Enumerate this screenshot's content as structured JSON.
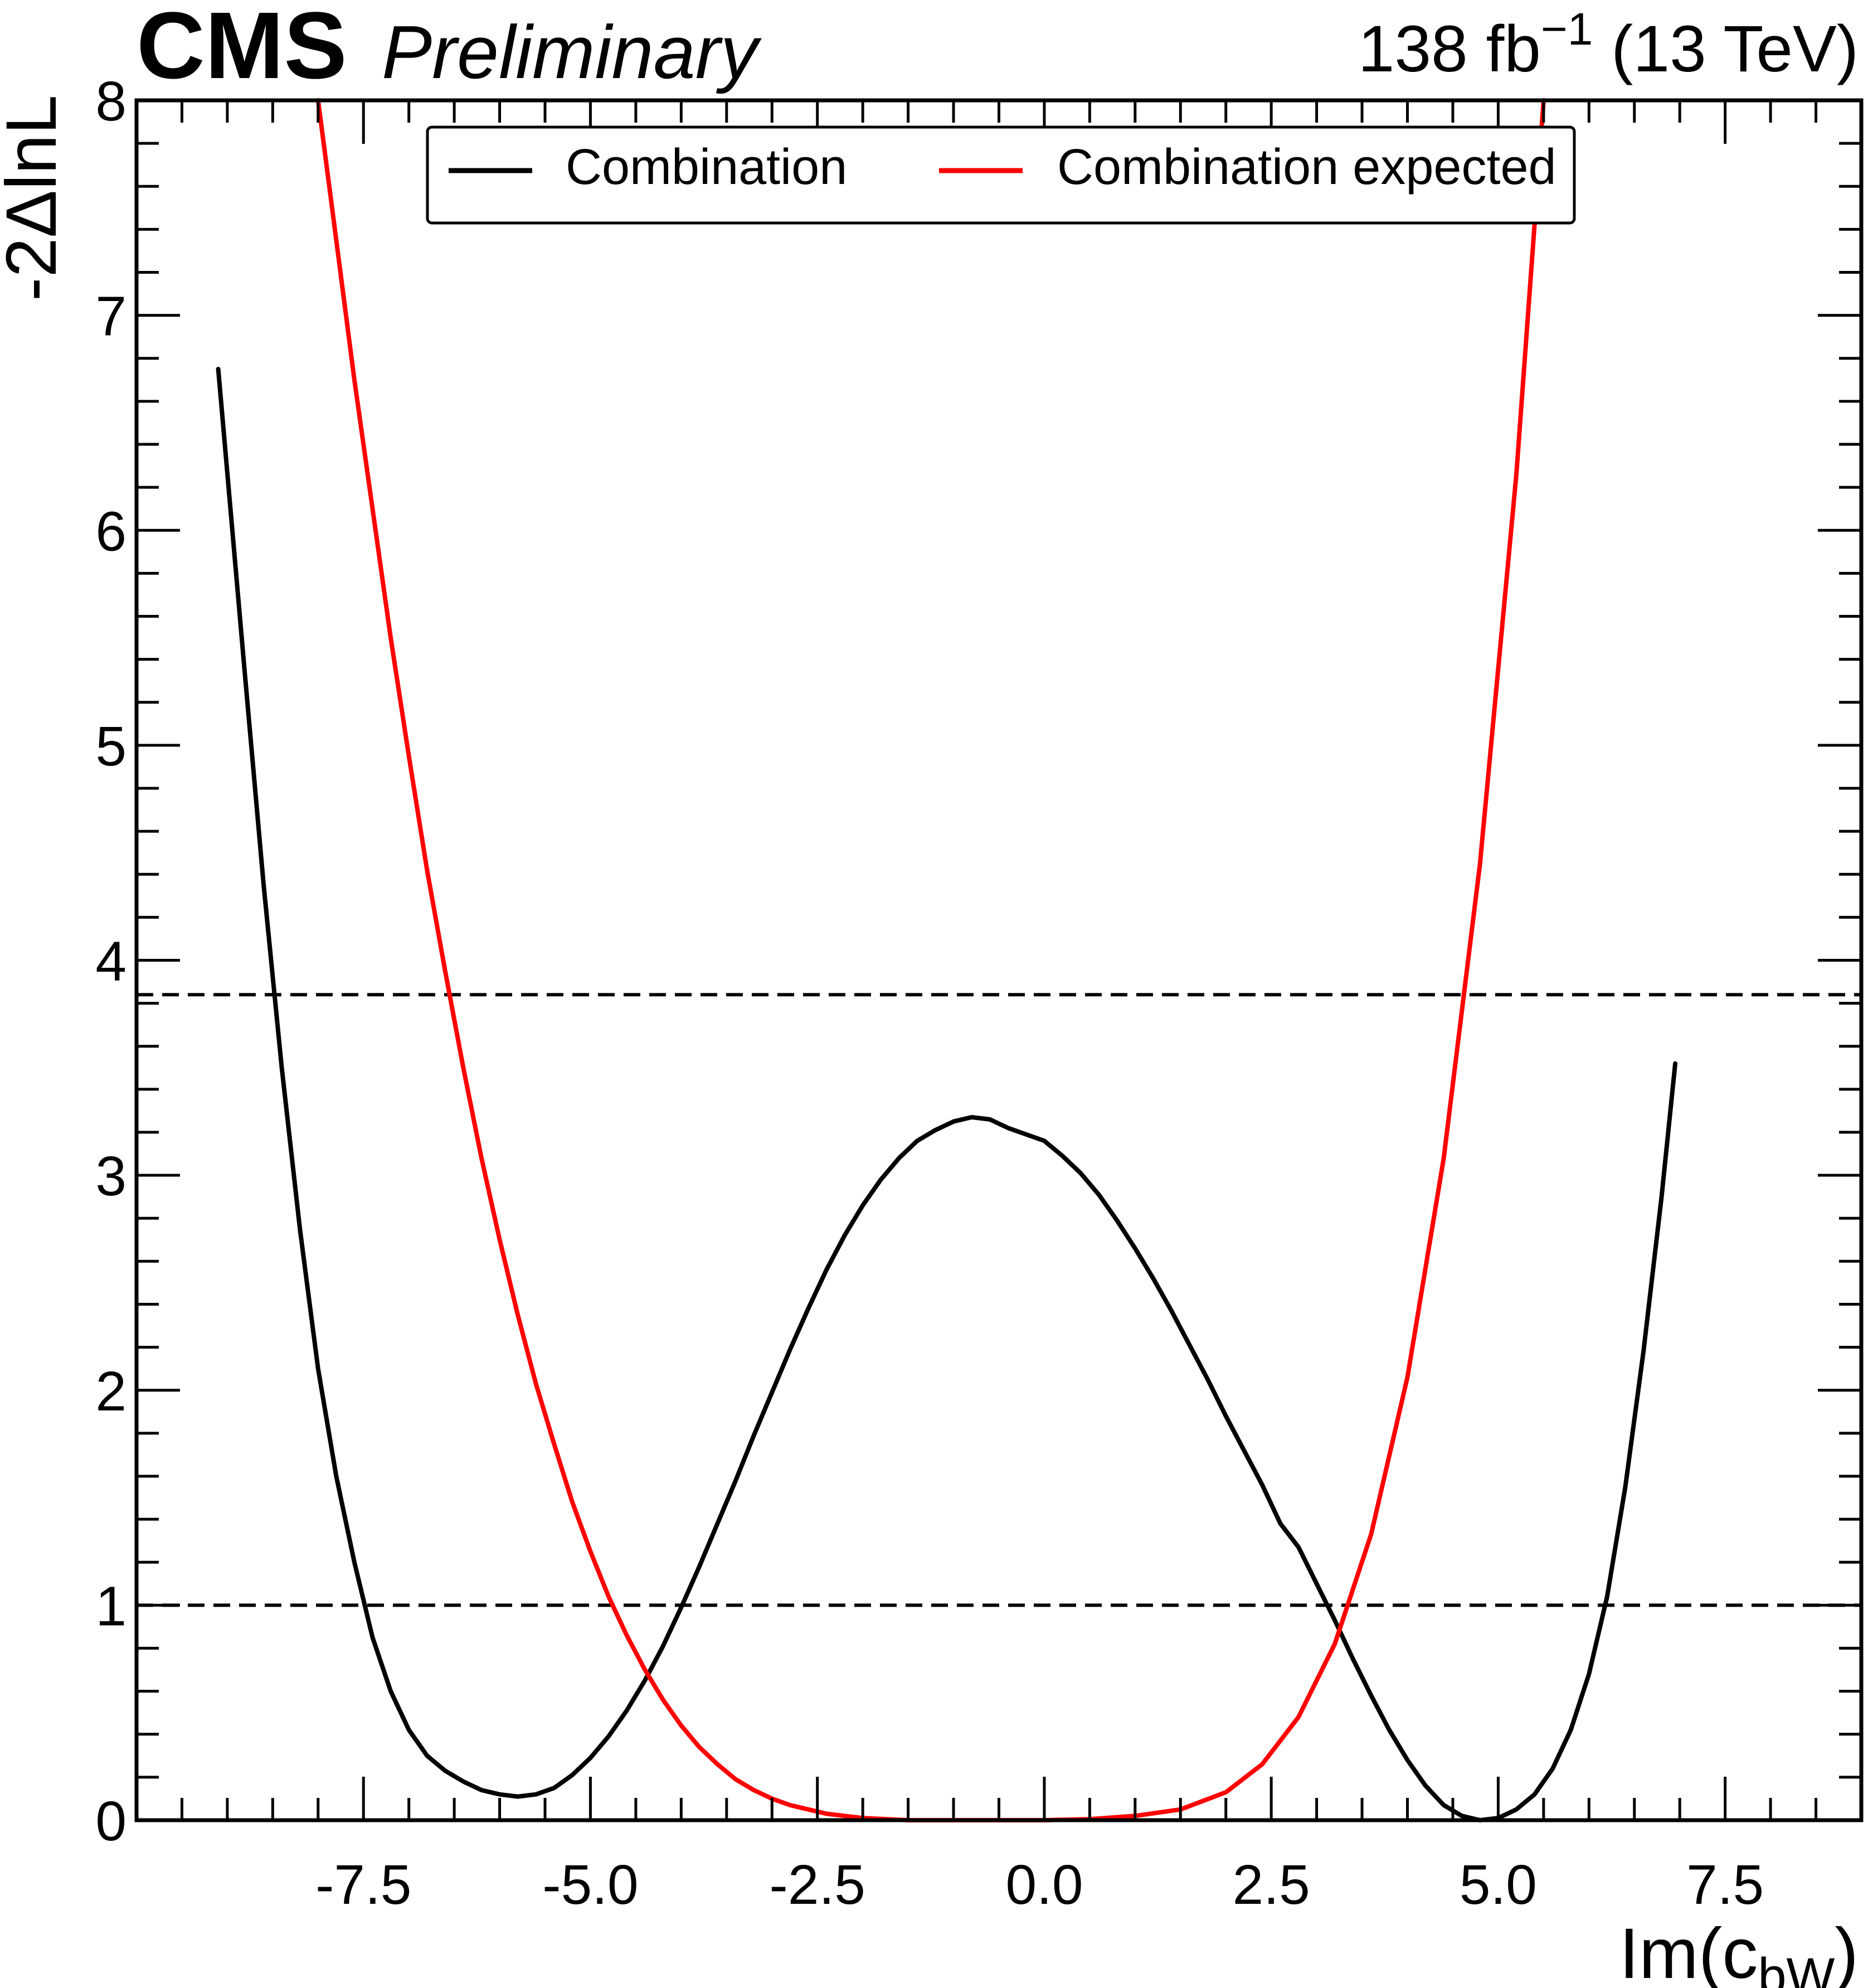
{
  "header": {
    "brand": "CMS",
    "status": "Preliminary",
    "lumi_value": "138 fb",
    "lumi_exponent": "−1",
    "lumi_energy": " (13 TeV)"
  },
  "chart_data": {
    "type": "line",
    "title": "",
    "xlabel_main": "Im(c",
    "xlabel_sub": "bW",
    "xlabel_close": ")",
    "ylabel": "-2ΔlnL",
    "xlim": [
      -10.0,
      9.0
    ],
    "ylim": [
      0,
      8
    ],
    "x_ticks": [
      -7.5,
      -5.0,
      -2.5,
      0.0,
      2.5,
      5.0,
      7.5
    ],
    "x_tick_labels": [
      "-7.5",
      "-5.0",
      "-2.5",
      "0.0",
      "2.5",
      "5.0",
      "7.5"
    ],
    "y_ticks": [
      0,
      1,
      2,
      3,
      4,
      5,
      6,
      7,
      8
    ],
    "y_tick_labels": [
      "0",
      "1",
      "2",
      "3",
      "4",
      "5",
      "6",
      "7",
      "8"
    ],
    "reference_lines": [
      {
        "y": 1.0,
        "style": "dashed",
        "color": "#000000"
      },
      {
        "y": 3.84,
        "style": "dashed",
        "color": "#000000"
      }
    ],
    "legend": {
      "placement": "top-center",
      "columns": 2
    },
    "series": [
      {
        "name": "Combination",
        "color": "#000000",
        "points": [
          [
            -9.1,
            6.75
          ],
          [
            -8.8,
            5.3
          ],
          [
            -8.6,
            4.35
          ],
          [
            -8.4,
            3.5
          ],
          [
            -8.2,
            2.75
          ],
          [
            -8.0,
            2.1
          ],
          [
            -7.8,
            1.6
          ],
          [
            -7.6,
            1.2
          ],
          [
            -7.4,
            0.85
          ],
          [
            -7.2,
            0.6
          ],
          [
            -7.0,
            0.42
          ],
          [
            -6.8,
            0.3
          ],
          [
            -6.6,
            0.23
          ],
          [
            -6.4,
            0.18
          ],
          [
            -6.2,
            0.14
          ],
          [
            -6.0,
            0.12
          ],
          [
            -5.8,
            0.11
          ],
          [
            -5.6,
            0.12
          ],
          [
            -5.4,
            0.15
          ],
          [
            -5.2,
            0.21
          ],
          [
            -5.0,
            0.29
          ],
          [
            -4.8,
            0.39
          ],
          [
            -4.6,
            0.51
          ],
          [
            -4.4,
            0.65
          ],
          [
            -4.2,
            0.81
          ],
          [
            -4.0,
            0.99
          ],
          [
            -3.8,
            1.18
          ],
          [
            -3.6,
            1.38
          ],
          [
            -3.4,
            1.58
          ],
          [
            -3.2,
            1.79
          ],
          [
            -3.0,
            1.99
          ],
          [
            -2.8,
            2.19
          ],
          [
            -2.6,
            2.38
          ],
          [
            -2.4,
            2.56
          ],
          [
            -2.2,
            2.72
          ],
          [
            -2.0,
            2.86
          ],
          [
            -1.8,
            2.98
          ],
          [
            -1.6,
            3.08
          ],
          [
            -1.4,
            3.16
          ],
          [
            -1.2,
            3.21
          ],
          [
            -1.0,
            3.25
          ],
          [
            -0.8,
            3.27
          ],
          [
            -0.6,
            3.26
          ],
          [
            -0.4,
            3.22
          ],
          [
            -0.2,
            3.19
          ],
          [
            0.0,
            3.16
          ],
          [
            0.2,
            3.09
          ],
          [
            0.4,
            3.01
          ],
          [
            0.6,
            2.91
          ],
          [
            0.8,
            2.79
          ],
          [
            1.0,
            2.66
          ],
          [
            1.2,
            2.52
          ],
          [
            1.4,
            2.37
          ],
          [
            1.6,
            2.21
          ],
          [
            1.8,
            2.05
          ],
          [
            2.0,
            1.88
          ],
          [
            2.2,
            1.72
          ],
          [
            2.4,
            1.56
          ],
          [
            2.6,
            1.38
          ],
          [
            2.8,
            1.27
          ],
          [
            3.0,
            1.1
          ],
          [
            3.2,
            0.93
          ],
          [
            3.4,
            0.75
          ],
          [
            3.6,
            0.58
          ],
          [
            3.8,
            0.42
          ],
          [
            4.0,
            0.28
          ],
          [
            4.2,
            0.16
          ],
          [
            4.4,
            0.07
          ],
          [
            4.6,
            0.02
          ],
          [
            4.8,
            0.0
          ],
          [
            5.0,
            0.01
          ],
          [
            5.2,
            0.05
          ],
          [
            5.4,
            0.12
          ],
          [
            5.6,
            0.24
          ],
          [
            5.8,
            0.42
          ],
          [
            6.0,
            0.68
          ],
          [
            6.2,
            1.04
          ],
          [
            6.4,
            1.55
          ],
          [
            6.6,
            2.18
          ],
          [
            6.8,
            2.9
          ],
          [
            6.95,
            3.52
          ]
        ]
      },
      {
        "name": "Combination expected",
        "color": "#ff0000",
        "points": [
          [
            -8.0,
            8.0
          ],
          [
            -7.8,
            7.35
          ],
          [
            -7.6,
            6.7
          ],
          [
            -7.4,
            6.1
          ],
          [
            -7.2,
            5.5
          ],
          [
            -7.0,
            4.95
          ],
          [
            -6.8,
            4.42
          ],
          [
            -6.6,
            3.95
          ],
          [
            -6.4,
            3.5
          ],
          [
            -6.2,
            3.08
          ],
          [
            -6.0,
            2.7
          ],
          [
            -5.8,
            2.35
          ],
          [
            -5.6,
            2.03
          ],
          [
            -5.4,
            1.75
          ],
          [
            -5.2,
            1.48
          ],
          [
            -5.0,
            1.25
          ],
          [
            -4.8,
            1.04
          ],
          [
            -4.6,
            0.86
          ],
          [
            -4.4,
            0.7
          ],
          [
            -4.2,
            0.56
          ],
          [
            -4.0,
            0.44
          ],
          [
            -3.8,
            0.34
          ],
          [
            -3.6,
            0.26
          ],
          [
            -3.4,
            0.19
          ],
          [
            -3.2,
            0.14
          ],
          [
            -3.0,
            0.1
          ],
          [
            -2.8,
            0.07
          ],
          [
            -2.6,
            0.05
          ],
          [
            -2.4,
            0.03
          ],
          [
            -2.2,
            0.02
          ],
          [
            -2.0,
            0.01
          ],
          [
            -1.5,
            0.0
          ],
          [
            -1.0,
            0.0
          ],
          [
            -0.5,
            0.0
          ],
          [
            0.0,
            0.0
          ],
          [
            0.5,
            0.005
          ],
          [
            1.0,
            0.02
          ],
          [
            1.5,
            0.05
          ],
          [
            2.0,
            0.13
          ],
          [
            2.4,
            0.26
          ],
          [
            2.8,
            0.48
          ],
          [
            3.2,
            0.82
          ],
          [
            3.6,
            1.33
          ],
          [
            4.0,
            2.06
          ],
          [
            4.4,
            3.08
          ],
          [
            4.8,
            4.45
          ],
          [
            5.2,
            6.26
          ],
          [
            5.5,
            8.0
          ]
        ]
      }
    ]
  }
}
